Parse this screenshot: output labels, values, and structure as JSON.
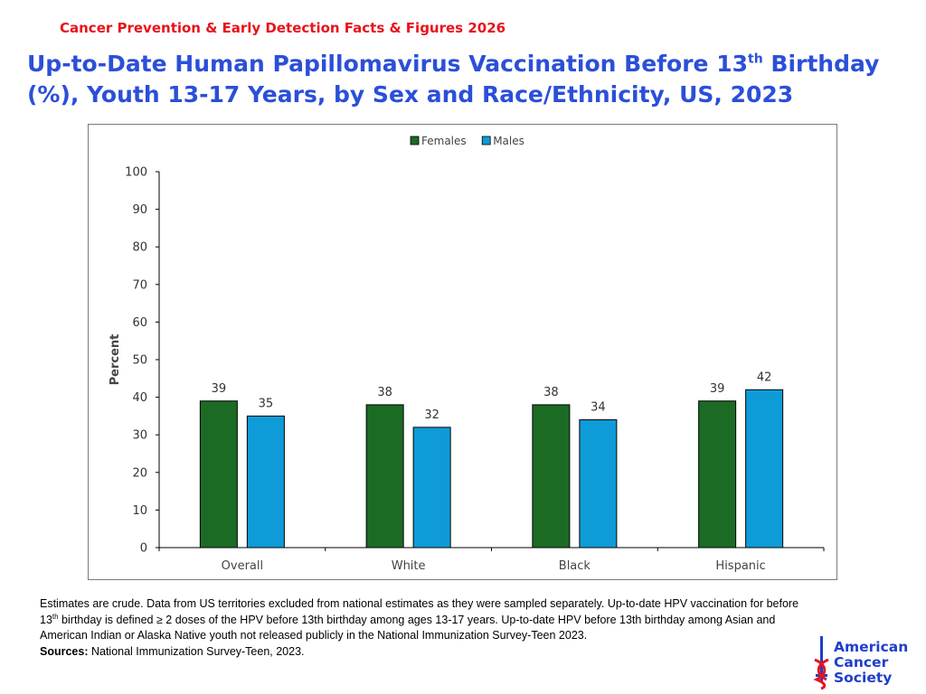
{
  "header": {
    "subtitle": "Cancer Prevention & Early Detection Facts & Figures 2026",
    "title_part1": "Up-to-Date Human Papillomavirus Vaccination Before 13",
    "title_sup": "th",
    "title_part2": " Birthday (%), Youth 13-17 Years, by Sex and Race/Ethnicity, US, 2023"
  },
  "chart_data": {
    "type": "bar",
    "categories": [
      "Overall",
      "White",
      "Black",
      "Hispanic"
    ],
    "series": [
      {
        "name": "Females",
        "values": [
          39,
          38,
          38,
          39
        ],
        "color": "#1b6b25"
      },
      {
        "name": "Males",
        "values": [
          35,
          32,
          34,
          42
        ],
        "color": "#0f9bd7"
      }
    ],
    "xlabel": "",
    "ylabel": "Percent",
    "ylim": [
      0,
      100
    ],
    "yticks": [
      0,
      10,
      20,
      30,
      40,
      50,
      60,
      70,
      80,
      90,
      100
    ],
    "legend_position": "top-center",
    "grid": false,
    "data_labels": true
  },
  "notes": {
    "line1_a": "Estimates are crude. Data from US territories excluded from national estimates as they were sampled separately. Up-to-date HPV vaccination for before 13",
    "line1_sup": "th",
    "line1_b": " birthday is defined ≥ 2 doses of the HPV before 13th birthday among ages 13-17 years. Up-to-date HPV before 13th birthday among Asian and American Indian or Alaska Native youth not released publicly in the National Immunization Survey-Teen 2023.",
    "sources_label": "Sources:",
    "sources_text": " National Immunization Survey-Teen, 2023."
  },
  "logo": {
    "line1": "American",
    "line2": "Cancer",
    "line3": "Society",
    "brand_color": "#1f3fc9",
    "accent_color": "#e8131b"
  }
}
